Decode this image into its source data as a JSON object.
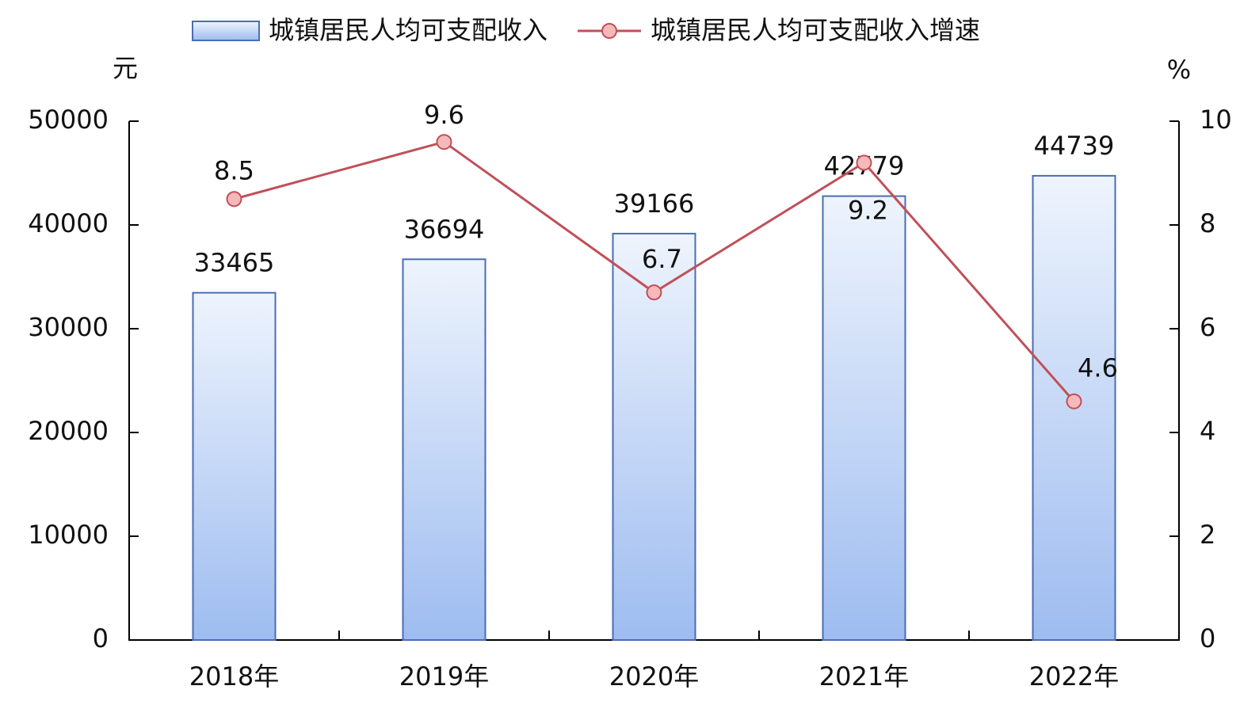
{
  "chart_data": {
    "type": "bar",
    "y_label": "元",
    "y2_label": "%",
    "categories": [
      "2018年",
      "2019年",
      "2020年",
      "2021年",
      "2022年"
    ],
    "series": [
      {
        "name": "城镇居民人均可支配收入",
        "type": "bar",
        "color": "#9ebcf0",
        "values": [
          33465,
          36694,
          39166,
          42779,
          44739
        ]
      },
      {
        "name": "城镇居民人均可支配收入增速",
        "type": "line",
        "axis": "y2",
        "color": "#c0505a",
        "values": [
          8.5,
          9.6,
          6.7,
          9.2,
          4.6
        ]
      }
    ],
    "ylim": [
      0,
      50000
    ],
    "yticks": [
      0,
      10000,
      20000,
      30000,
      40000,
      50000
    ],
    "y2lim": [
      0,
      10
    ],
    "y2ticks": [
      0,
      2,
      4,
      6,
      8,
      10
    ]
  }
}
